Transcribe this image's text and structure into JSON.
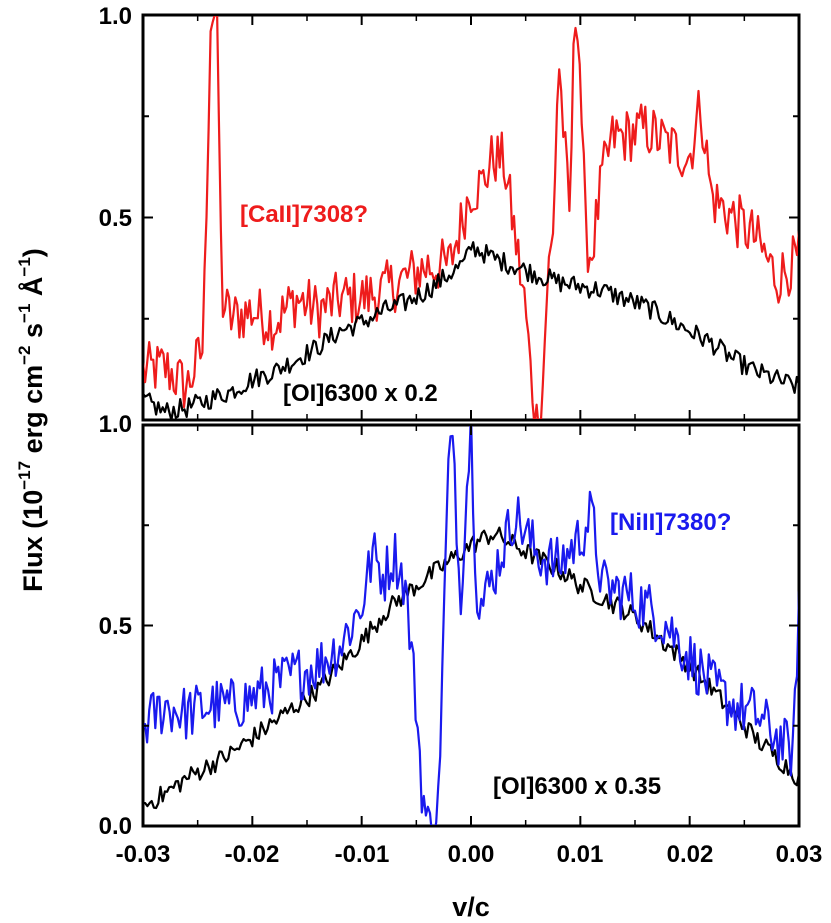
{
  "chart_data": [
    {
      "type": "line",
      "panel": "top",
      "xlim": [
        -0.03,
        0.03
      ],
      "ylim": [
        0.0,
        1.0
      ],
      "y_tick_labels": [
        "1.0",
        "0.5",
        "1.0"
      ],
      "series": [
        {
          "name": "[CaII]7308?",
          "color": "#ee1c1c",
          "x": [
            -0.03,
            -0.028,
            -0.026,
            -0.0245,
            -0.0238,
            -0.0232,
            -0.0228,
            -0.022,
            -0.02,
            -0.018,
            -0.016,
            -0.014,
            -0.012,
            -0.01,
            -0.008,
            -0.006,
            -0.004,
            -0.002,
            0.0,
            0.001,
            0.002,
            0.003,
            0.004,
            0.005,
            0.0055,
            0.006,
            0.0065,
            0.007,
            0.0075,
            0.008,
            0.009,
            0.0095,
            0.0098,
            0.0105,
            0.011,
            0.012,
            0.013,
            0.014,
            0.016,
            0.018,
            0.02,
            0.021,
            0.022,
            0.024,
            0.026,
            0.028,
            0.03
          ],
          "y": [
            0.12,
            0.13,
            0.08,
            0.18,
            1.0,
            1.0,
            0.3,
            0.25,
            0.27,
            0.24,
            0.3,
            0.27,
            0.3,
            0.3,
            0.32,
            0.35,
            0.38,
            0.38,
            0.57,
            0.58,
            0.65,
            0.64,
            0.46,
            0.27,
            0.1,
            0.0,
            0.05,
            0.35,
            0.45,
            0.9,
            0.5,
            1.0,
            1.0,
            0.45,
            0.4,
            0.6,
            0.7,
            0.7,
            0.72,
            0.68,
            0.65,
            0.78,
            0.55,
            0.5,
            0.45,
            0.35,
            0.4
          ]
        },
        {
          "name": "[OI]6300 x 0.2",
          "color": "#000000",
          "x": [
            -0.03,
            -0.028,
            -0.026,
            -0.024,
            -0.022,
            -0.02,
            -0.018,
            -0.016,
            -0.014,
            -0.012,
            -0.01,
            -0.008,
            -0.006,
            -0.004,
            -0.002,
            -0.0005,
            0.0,
            0.002,
            0.004,
            0.006,
            0.008,
            0.01,
            0.012,
            0.014,
            0.016,
            0.018,
            0.02,
            0.022,
            0.024,
            0.026,
            0.028,
            0.03
          ],
          "y": [
            0.05,
            0.02,
            0.03,
            0.05,
            0.07,
            0.1,
            0.12,
            0.15,
            0.18,
            0.22,
            0.24,
            0.27,
            0.29,
            0.32,
            0.36,
            0.39,
            0.43,
            0.4,
            0.38,
            0.36,
            0.34,
            0.33,
            0.32,
            0.3,
            0.28,
            0.25,
            0.22,
            0.19,
            0.15,
            0.12,
            0.1,
            0.08
          ]
        }
      ],
      "annotations": [
        {
          "text": "[CaII]7308?",
          "color": "#ee1c1c"
        },
        {
          "text": "[OI]6300 x 0.2",
          "color": "#000000"
        }
      ]
    },
    {
      "type": "line",
      "panel": "bottom",
      "xlim": [
        -0.03,
        0.03
      ],
      "ylim": [
        0.0,
        1.0
      ],
      "xlabel": "v/c",
      "y_tick_labels": [
        "1.0",
        "0.5",
        "0.0"
      ],
      "x_tick_labels": [
        "-0.03",
        "-0.02",
        "-0.01",
        "0.00",
        "0.01",
        "0.02",
        "0.03"
      ],
      "series": [
        {
          "name": "[NiII]7380?",
          "color": "#1a1aee",
          "x": [
            -0.03,
            -0.028,
            -0.026,
            -0.024,
            -0.022,
            -0.02,
            -0.018,
            -0.016,
            -0.014,
            -0.012,
            -0.01,
            -0.009,
            -0.008,
            -0.007,
            -0.006,
            -0.005,
            -0.0045,
            -0.004,
            -0.0035,
            -0.003,
            -0.0025,
            -0.002,
            -0.0015,
            -0.001,
            -0.0005,
            0.0,
            0.0005,
            0.001,
            0.002,
            0.004,
            0.006,
            0.008,
            0.01,
            0.011,
            0.012,
            0.014,
            0.016,
            0.018,
            0.02,
            0.022,
            0.024,
            0.026,
            0.028,
            0.0295,
            0.03
          ],
          "y": [
            0.25,
            0.3,
            0.28,
            0.3,
            0.3,
            0.32,
            0.35,
            0.38,
            0.4,
            0.45,
            0.55,
            0.68,
            0.62,
            0.68,
            0.6,
            0.3,
            0.1,
            0.0,
            0.0,
            0.05,
            0.5,
            0.95,
            0.9,
            0.55,
            0.8,
            1.0,
            0.6,
            0.55,
            0.62,
            0.78,
            0.68,
            0.65,
            0.72,
            0.78,
            0.6,
            0.58,
            0.55,
            0.5,
            0.42,
            0.35,
            0.3,
            0.28,
            0.22,
            0.18,
            0.58
          ]
        },
        {
          "name": "[OI]6300 x 0.35",
          "color": "#000000",
          "x": [
            -0.03,
            -0.028,
            -0.026,
            -0.024,
            -0.022,
            -0.02,
            -0.018,
            -0.016,
            -0.014,
            -0.012,
            -0.01,
            -0.008,
            -0.006,
            -0.004,
            -0.002,
            0.0,
            0.002,
            0.004,
            0.006,
            0.008,
            0.01,
            0.012,
            0.014,
            0.016,
            0.018,
            0.02,
            0.022,
            0.024,
            0.026,
            0.028,
            0.03
          ],
          "y": [
            0.05,
            0.08,
            0.12,
            0.15,
            0.18,
            0.22,
            0.26,
            0.3,
            0.34,
            0.4,
            0.46,
            0.53,
            0.58,
            0.62,
            0.66,
            0.7,
            0.73,
            0.7,
            0.67,
            0.64,
            0.6,
            0.57,
            0.54,
            0.5,
            0.45,
            0.4,
            0.34,
            0.28,
            0.22,
            0.17,
            0.12
          ]
        }
      ],
      "annotations": [
        {
          "text": "[NiII]7380?",
          "color": "#1a1aee"
        },
        {
          "text": "[OI]6300 x 0.35",
          "color": "#000000"
        }
      ]
    }
  ],
  "ylabel": {
    "main": "Flux (10",
    "exp1": "−17",
    "mid1": " erg cm",
    "exp2": "−2",
    "mid2": " s",
    "exp3": "−1",
    "mid3": " Å",
    "exp4": "−1",
    "end": ")"
  }
}
